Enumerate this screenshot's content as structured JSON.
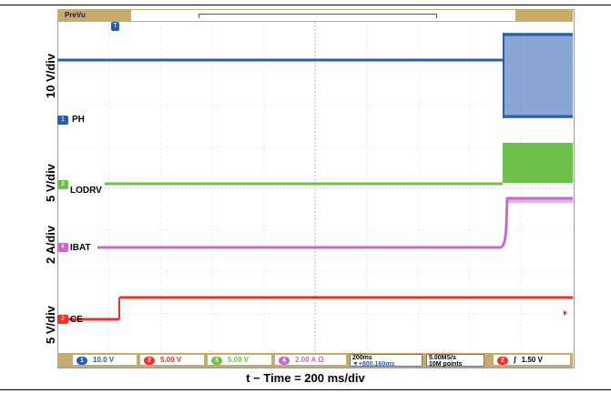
{
  "preview_label": "PreVu",
  "trigger_marker": "T",
  "channels": [
    {
      "id": "1",
      "name": "PH",
      "scale": "10 V/div",
      "color": "#2a5db0",
      "readout": "10.0 V"
    },
    {
      "id": "2",
      "name": "CE",
      "scale": "5 V/div",
      "color": "#e8322c",
      "readout": "5.00 V"
    },
    {
      "id": "3",
      "name": "LODRV",
      "scale": "5 V/div",
      "color": "#6cc04a",
      "readout": "5.00 V"
    },
    {
      "id": "4",
      "name": "IBAT",
      "scale": "2 A/div",
      "color": "#c46ac8",
      "readout": "2.00 A Ω"
    }
  ],
  "timebase": {
    "value": "200ms",
    "trigger_delay": "▼+800.160ms"
  },
  "acquisition": {
    "rate": "5.00MS/s",
    "points": "10M points"
  },
  "trigger": {
    "channel": "2",
    "slope": "ʃ",
    "level": "1.50 V"
  },
  "caption": "t − Time = 200 ms/div",
  "colors": {
    "frame_gold": "#c8ab6a",
    "grid": "#c8c8c8"
  }
}
